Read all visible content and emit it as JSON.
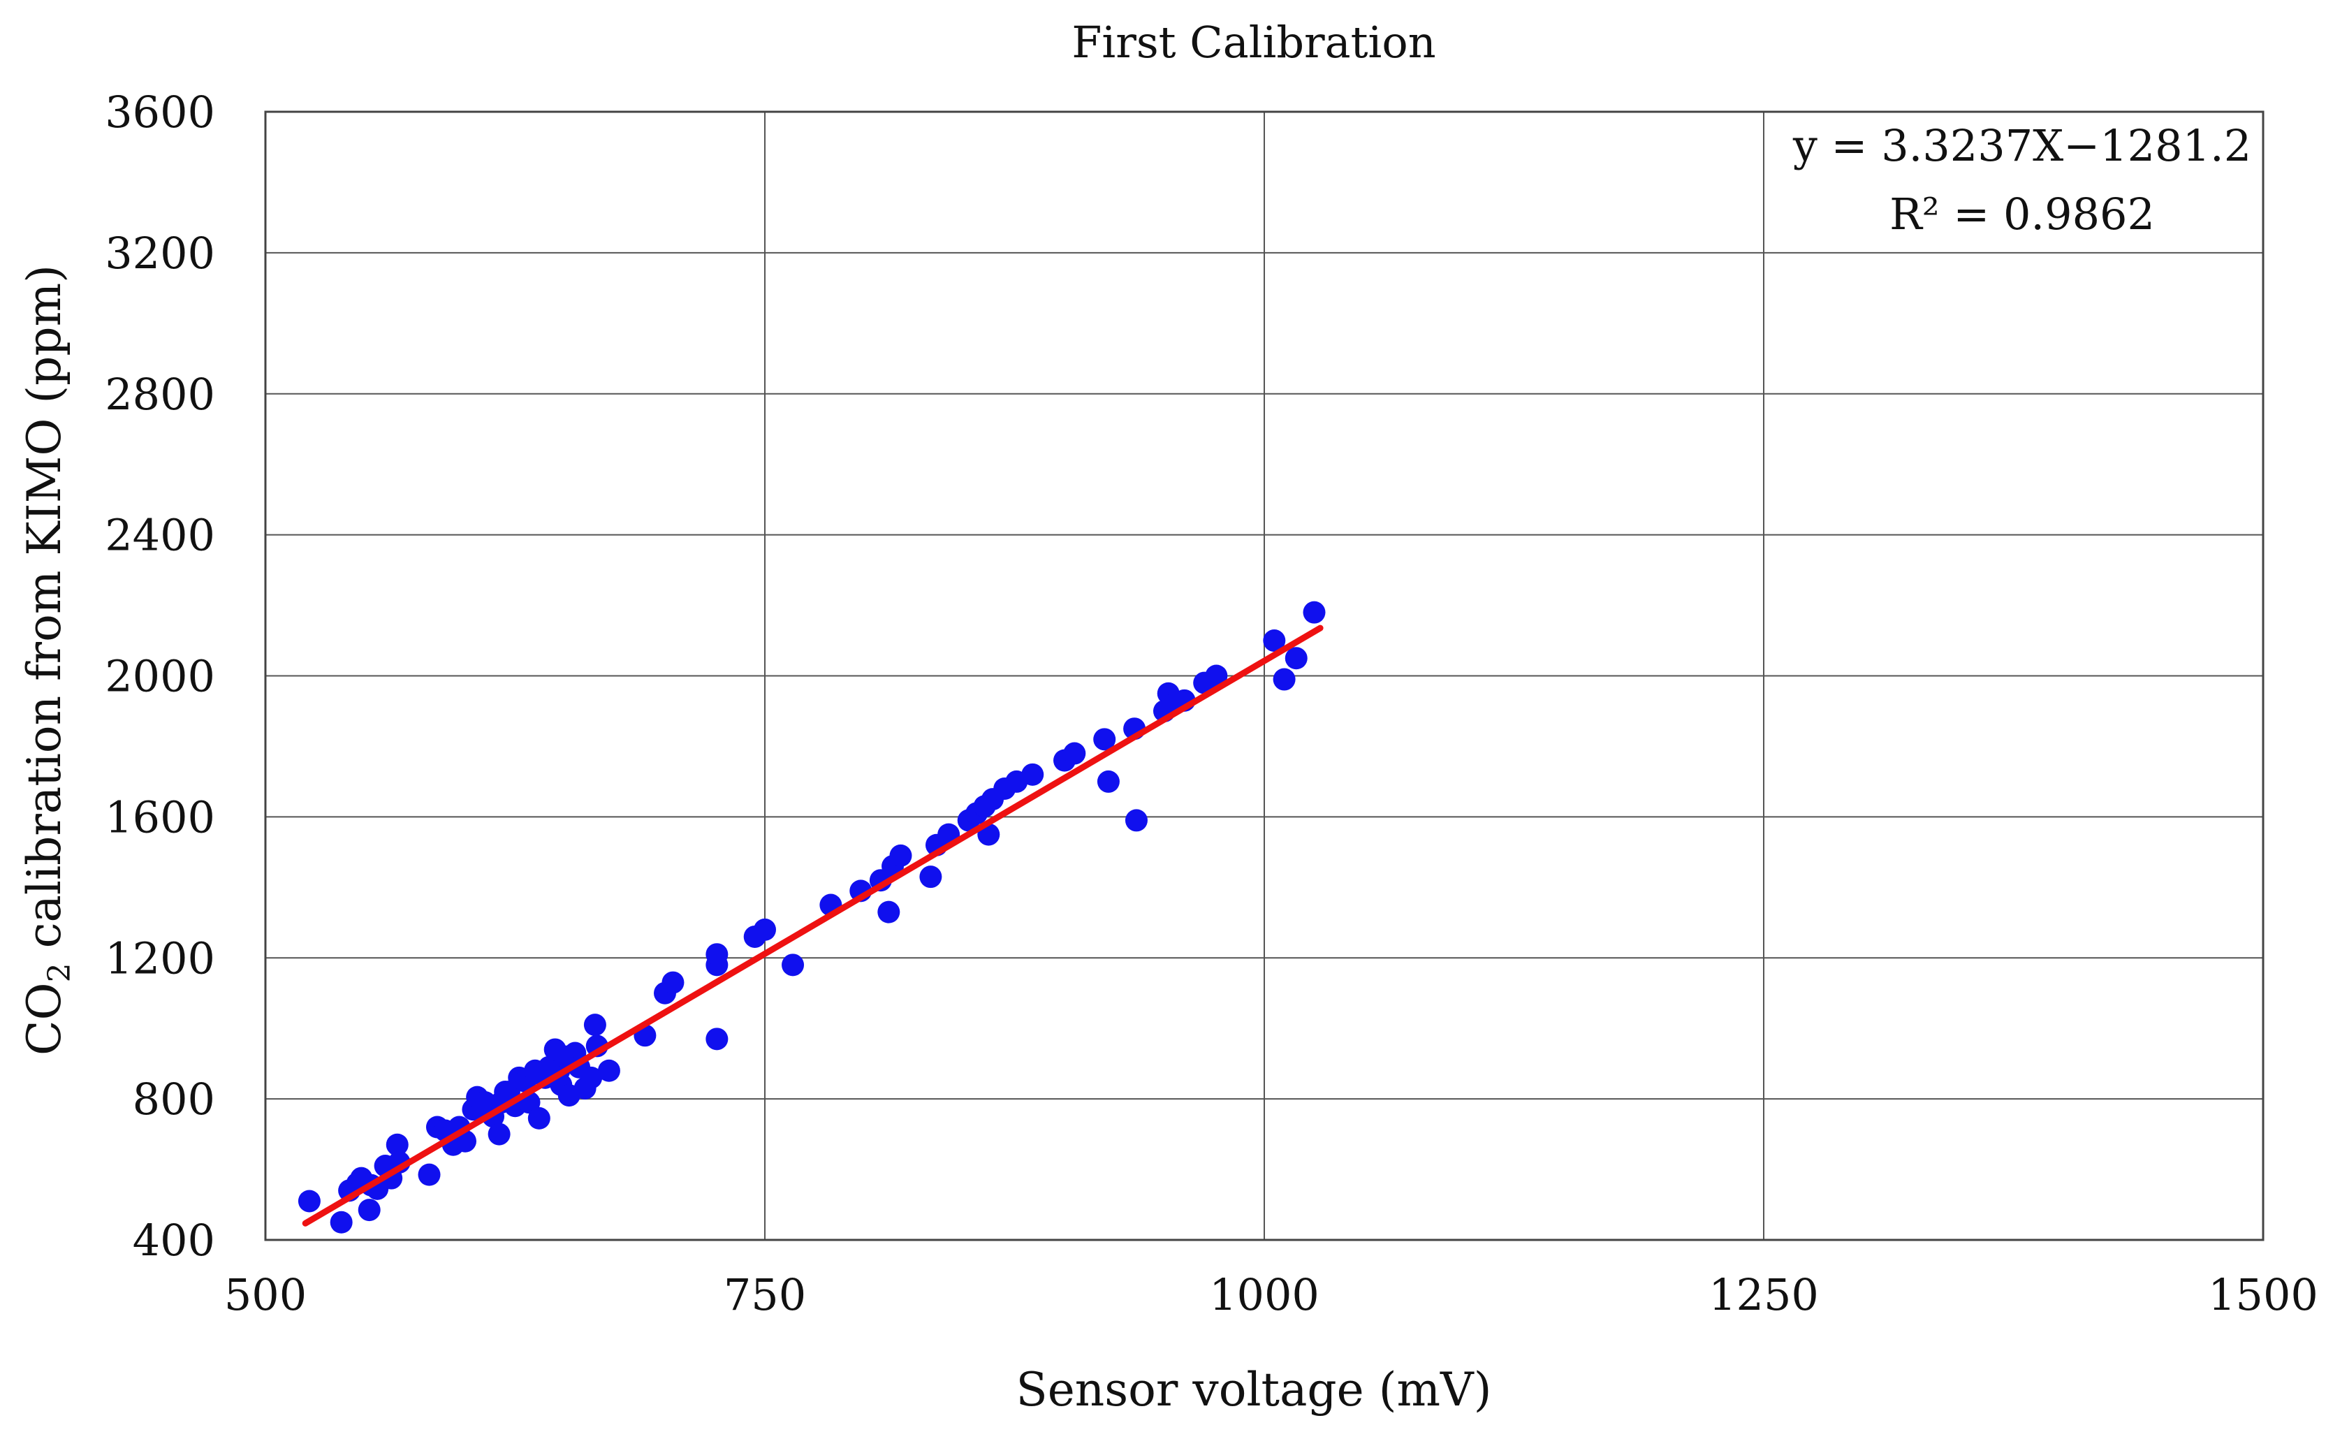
{
  "chart_data": {
    "type": "scatter",
    "title": "First Calibration",
    "xlabel": "Sensor voltage (mV)",
    "ylabel": {
      "prefix": "CO",
      "subscript": "2",
      "suffix": " calibration  from KIMO (ppm)"
    },
    "xlim": [
      500,
      1500
    ],
    "ylim": [
      400,
      3600
    ],
    "xticks": [
      500,
      750,
      1000,
      1250,
      1500
    ],
    "yticks": [
      400,
      800,
      1200,
      1600,
      2000,
      2400,
      2800,
      3200,
      3600
    ],
    "grid": true,
    "annotation": {
      "position": "top-right",
      "lines": [
        "y = 3.3237X−1281.2",
        "R² = 0.9862"
      ]
    },
    "series": [
      {
        "kind": "points",
        "color": "#1010ee",
        "x": [
          522,
          538,
          542,
          546,
          548,
          552,
          553,
          556,
          560,
          563,
          566,
          567,
          582,
          586,
          590,
          594,
          597,
          600,
          604,
          606,
          610,
          614,
          617,
          618,
          620,
          622,
          625,
          627,
          630,
          632,
          635,
          637,
          640,
          642,
          645,
          647,
          648,
          650,
          652,
          655,
          657,
          660,
          663,
          665,
          666,
          672,
          690,
          700,
          704,
          726,
          726,
          726,
          745,
          750,
          764,
          783,
          798,
          808,
          812,
          814,
          818,
          833,
          836,
          842,
          852,
          856,
          860,
          862,
          864,
          870,
          876,
          884,
          900,
          905,
          920,
          922,
          935,
          936,
          950,
          952,
          955,
          960,
          970,
          976,
          1005,
          1010,
          1016,
          1025
        ],
        "y": [
          510,
          450,
          540,
          560,
          575,
          485,
          555,
          545,
          610,
          575,
          670,
          620,
          585,
          720,
          710,
          670,
          720,
          680,
          770,
          805,
          790,
          750,
          700,
          790,
          820,
          820,
          780,
          860,
          850,
          790,
          880,
          745,
          860,
          890,
          940,
          880,
          840,
          920,
          810,
          930,
          890,
          830,
          860,
          1010,
          950,
          880,
          980,
          1100,
          1130,
          970,
          1180,
          1210,
          1260,
          1280,
          1180,
          1350,
          1390,
          1420,
          1330,
          1460,
          1490,
          1430,
          1520,
          1550,
          1590,
          1610,
          1630,
          1550,
          1650,
          1680,
          1700,
          1720,
          1760,
          1780,
          1820,
          1700,
          1850,
          1590,
          1900,
          1950,
          1920,
          1930,
          1980,
          2000,
          2100,
          1990,
          2050,
          2180
        ]
      },
      {
        "kind": "fit-line",
        "color": "#ee1111",
        "slope": 3.3237,
        "intercept": -1281.2,
        "x_range": [
          520,
          1028
        ]
      }
    ]
  }
}
